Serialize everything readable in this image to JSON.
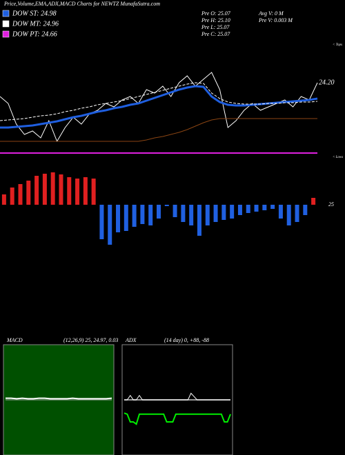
{
  "header": {
    "title": "Price,Volume,EMA,ADX,MACD Charts for NEWTZ MunafaSutra.com",
    "info": [
      "Pre O: 25.07",
      "Pre H: 25.10",
      "Pre L: 25.07",
      "Pre C: 25.07"
    ],
    "volume_info": [
      "Avg V: 0 M",
      "Pre V: 0.003 M"
    ]
  },
  "chart_data": [
    {
      "type": "line",
      "ylim": [
        23,
        25
      ],
      "categories": [
        null,
        null,
        null,
        null,
        null,
        null,
        null,
        null,
        null,
        null,
        null,
        null,
        null,
        null,
        null,
        null,
        null,
        null,
        null,
        null,
        null,
        null,
        null,
        null,
        null,
        null,
        null,
        null,
        null,
        null,
        null,
        null,
        null,
        null,
        null,
        null,
        null,
        null,
        null,
        null
      ],
      "annotations": [
        "< Tops",
        "< Lows"
      ],
      "last_label": {
        "value": 24.2,
        "label": "24.20"
      },
      "series": [
        {
          "color": "#ffffff",
          "width": 1,
          "values": [
            24.0,
            23.9,
            23.6,
            23.45,
            23.5,
            23.4,
            23.65,
            23.35,
            23.55,
            23.7,
            23.6,
            23.75,
            23.8,
            23.9,
            23.85,
            23.95,
            24.0,
            23.9,
            24.1,
            24.05,
            24.15,
            24.0,
            24.2,
            24.3,
            24.15,
            24.25,
            24.35,
            24.1,
            23.55,
            23.65,
            23.8,
            23.9,
            23.8,
            23.85,
            23.9,
            23.95,
            23.85,
            24.0,
            23.95,
            24.2
          ]
        },
        {
          "name": "DOW ST: 24.98",
          "color": "#1f5fe0",
          "width": 3,
          "values": [
            23.55,
            23.55,
            23.56,
            23.57,
            23.58,
            23.6,
            23.62,
            23.64,
            23.67,
            23.7,
            23.72,
            23.75,
            23.78,
            23.8,
            23.83,
            23.85,
            23.88,
            23.9,
            23.94,
            23.98,
            24.02,
            24.06,
            24.1,
            24.13,
            24.15,
            24.14,
            24.0,
            23.92,
            23.88,
            23.87,
            23.87,
            23.88,
            23.89,
            23.9,
            23.91,
            23.92,
            23.93,
            23.94,
            23.95,
            23.97
          ]
        },
        {
          "name": "DOW MT: 24.96",
          "color": "#ffffff",
          "width": 1,
          "dash": true,
          "values": [
            23.65,
            23.66,
            23.67,
            23.68,
            23.7,
            23.72,
            23.73,
            23.75,
            23.78,
            23.8,
            23.83,
            23.85,
            23.88,
            23.9,
            23.92,
            23.94,
            23.97,
            24.0,
            24.03,
            24.06,
            24.09,
            24.12,
            24.15,
            24.18,
            24.2,
            24.19,
            24.05,
            23.97,
            23.92,
            23.9,
            23.89,
            23.89,
            23.89,
            23.9,
            23.9,
            23.91,
            23.91,
            23.92,
            23.92,
            23.93
          ]
        },
        {
          "color": "#8b4513",
          "width": 1,
          "values": [
            23.35,
            23.35,
            23.35,
            23.35,
            23.35,
            23.35,
            23.35,
            23.35,
            23.35,
            23.35,
            23.35,
            23.35,
            23.35,
            23.35,
            23.35,
            23.35,
            23.35,
            23.35,
            23.37,
            23.4,
            23.42,
            23.45,
            23.48,
            23.52,
            23.57,
            23.62,
            23.66,
            23.68,
            23.68,
            23.68,
            23.68,
            23.68,
            23.68,
            23.68,
            23.68,
            23.68,
            23.68,
            23.68,
            23.68,
            23.68
          ]
        },
        {
          "name": "DOW PT: 24.66",
          "color": "#e020e0",
          "width": 2,
          "values": [
            23.18,
            23.18,
            23.18,
            23.18,
            23.18,
            23.18,
            23.18,
            23.18,
            23.18,
            23.18,
            23.18,
            23.18,
            23.18,
            23.18,
            23.18,
            23.18,
            23.18,
            23.18,
            23.18,
            23.18,
            23.18,
            23.18,
            23.18,
            23.18,
            23.18,
            23.18,
            23.18,
            23.18,
            23.18,
            23.18,
            23.18,
            23.18,
            23.18,
            23.18,
            23.18,
            23.18,
            23.18,
            23.18,
            23.18,
            23.18
          ]
        }
      ]
    },
    {
      "type": "bar",
      "ylim": [
        -60,
        60
      ],
      "up_color": "#e02020",
      "down_color": "#2060e0",
      "baseline_label": "25",
      "values": [
        15,
        25,
        30,
        35,
        42,
        45,
        47,
        44,
        40,
        38,
        40,
        38,
        -50,
        -58,
        -40,
        -38,
        -32,
        -28,
        -30,
        -20,
        -2,
        -18,
        -25,
        -30,
        -45,
        -30,
        -25,
        -22,
        -20,
        -15,
        -12,
        -10,
        -8,
        -6,
        -20,
        -30,
        -25,
        -15,
        10
      ]
    },
    {
      "type": "line",
      "title": "MACD",
      "subtitle": "(12,26,9) 25, 24.97, 0.03",
      "ylim": [
        -1,
        1
      ],
      "background": "#005000",
      "series": [
        {
          "color": "#ffffff",
          "width": 2,
          "values": [
            0.03,
            0.03,
            0.02,
            0.03,
            0.02,
            0.02,
            0.03,
            0.03,
            0.02,
            0.02,
            0.02,
            0.02,
            0.03,
            0.02,
            0.02,
            0.02,
            0.02,
            0.02,
            0.02,
            0.03
          ]
        },
        {
          "color": "#aaaaaa",
          "width": 1,
          "values": [
            0.0,
            0.0,
            0.0,
            0.0,
            0.0,
            0.0,
            0.0,
            0.0,
            0.0,
            0.0,
            0.0,
            0.0,
            0.0,
            0.0,
            0.0,
            0.0,
            0.0,
            0.0,
            0.0,
            0.0
          ]
        }
      ]
    },
    {
      "type": "line",
      "title": "ADX",
      "subtitle": "(14 day) 0, +88, -88",
      "ylim": [
        0,
        100
      ],
      "background": "#000000",
      "series": [
        {
          "color": "#00ee00",
          "width": 2,
          "values": [
            38,
            37,
            30,
            30,
            28,
            37,
            37,
            37,
            37,
            37,
            37,
            37,
            37,
            37,
            30,
            30,
            30,
            37,
            37,
            37,
            37,
            37,
            37,
            37,
            37,
            37,
            37,
            37,
            37,
            37,
            37,
            37,
            37,
            30,
            30,
            37
          ]
        },
        {
          "color": "#999999",
          "width": 2,
          "values": [
            50,
            50,
            50,
            50,
            50,
            50,
            50,
            50,
            50,
            50,
            50,
            50,
            50,
            50,
            50,
            50,
            50,
            50,
            50,
            50,
            50,
            50,
            50,
            50,
            50,
            50,
            50,
            50,
            50,
            50,
            50,
            50,
            50,
            50,
            50,
            50
          ]
        },
        {
          "color": "#ffffff",
          "width": 1,
          "values": [
            50,
            50,
            54,
            50,
            50,
            54,
            50,
            50,
            50,
            50,
            50,
            50,
            50,
            50,
            50,
            50,
            50,
            50,
            50,
            50,
            50,
            50,
            56,
            53,
            50,
            50,
            50,
            50,
            50,
            50,
            50,
            50,
            50,
            50,
            50,
            50
          ]
        }
      ]
    }
  ]
}
